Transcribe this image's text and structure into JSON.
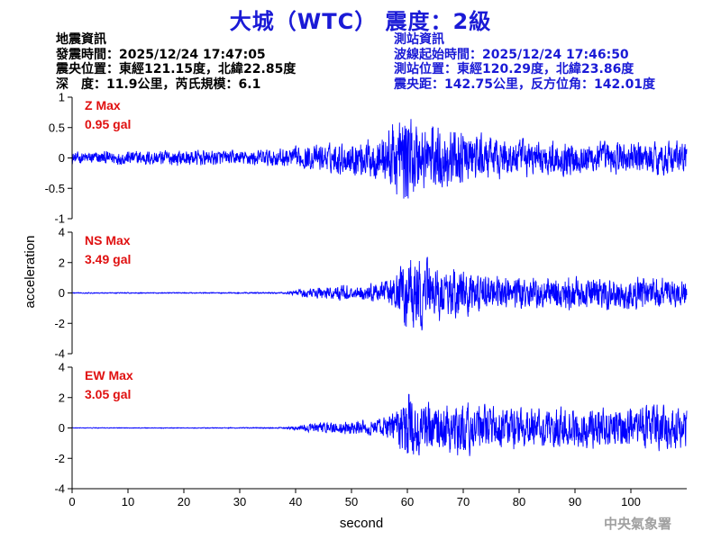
{
  "title": "大城（WTC） 震度：2級",
  "earthquake_info": {
    "heading": "地震資訊",
    "origin_time": "發震時間：2025/12/24 17:47:05",
    "epicenter": "震央位置：東經121.15度，北緯22.85度",
    "depth_magnitude": "深　度：11.9公里，芮氏規模：6.1"
  },
  "station_info": {
    "heading": "測站資訊",
    "wave_start": "波線起始時間：2025/12/24 17:46:50",
    "station_location": "測站位置：東經120.29度，北緯23.86度",
    "distance_azimuth": "震央距：142.75公里，反方位角：142.01度"
  },
  "footer": "中央氣象署",
  "colors": {
    "title": "#1a1ad6",
    "trace": "#0000ff",
    "max_label": "#e01010",
    "axis": "#000000"
  },
  "chart_data": [
    {
      "type": "line",
      "component": "Z",
      "max_label": "Z Max",
      "max_value": "0.95 gal",
      "peak": 0.95,
      "ylim": [
        -1,
        1
      ],
      "yticks": [
        1,
        0.5,
        0,
        -0.5,
        -1
      ],
      "ytick_labels": [
        "1",
        "0.5",
        "0",
        "-0.5",
        "-1"
      ],
      "xlim": [
        0,
        110
      ],
      "envelope": {
        "x": [
          0,
          10,
          20,
          30,
          40,
          45,
          50,
          55,
          58,
          60,
          62,
          65,
          70,
          75,
          80,
          85,
          90,
          95,
          100,
          105,
          110
        ],
        "amp": [
          0.12,
          0.15,
          0.17,
          0.15,
          0.22,
          0.28,
          0.36,
          0.45,
          0.8,
          0.95,
          0.75,
          0.7,
          0.55,
          0.42,
          0.38,
          0.35,
          0.36,
          0.34,
          0.33,
          0.36,
          0.34
        ]
      }
    },
    {
      "type": "line",
      "component": "NS",
      "max_label": "NS Max",
      "max_value": "3.49 gal",
      "peak": 3.49,
      "ylim": [
        -4,
        4
      ],
      "yticks": [
        4,
        2,
        0,
        -2,
        -4
      ],
      "ytick_labels": [
        "4",
        "2",
        "0",
        "-2",
        "-4"
      ],
      "xlim": [
        0,
        110
      ],
      "envelope": {
        "x": [
          0,
          10,
          20,
          30,
          38,
          41,
          45,
          50,
          55,
          58,
          60,
          62,
          65,
          70,
          75,
          80,
          85,
          90,
          95,
          100,
          105,
          110
        ],
        "amp": [
          0.04,
          0.04,
          0.04,
          0.05,
          0.06,
          0.3,
          0.55,
          0.65,
          0.8,
          1.4,
          3.49,
          2.9,
          2.4,
          1.8,
          1.4,
          1.3,
          1.3,
          1.5,
          1.3,
          1.4,
          1.3,
          1.2
        ]
      }
    },
    {
      "type": "line",
      "component": "EW",
      "max_label": "EW Max",
      "max_value": "3.05 gal",
      "peak": 3.05,
      "ylim": [
        -4,
        4
      ],
      "yticks": [
        4,
        2,
        0,
        -2,
        -4
      ],
      "ytick_labels": [
        "4",
        "2",
        "0",
        "-2",
        "-4"
      ],
      "xlim": [
        0,
        110
      ],
      "envelope": {
        "x": [
          0,
          10,
          20,
          30,
          38,
          41,
          45,
          50,
          55,
          58,
          60,
          62,
          65,
          70,
          75,
          80,
          85,
          90,
          95,
          100,
          105,
          110
        ],
        "amp": [
          0.03,
          0.03,
          0.03,
          0.04,
          0.05,
          0.25,
          0.45,
          0.55,
          0.7,
          1.4,
          3.05,
          2.5,
          2.0,
          2.2,
          1.9,
          1.7,
          1.6,
          1.7,
          1.6,
          1.7,
          1.8,
          1.7
        ]
      }
    }
  ],
  "x_axis": {
    "label": "second",
    "ticks": [
      0,
      10,
      20,
      30,
      40,
      50,
      60,
      70,
      80,
      90,
      100
    ],
    "tick_labels": [
      "0",
      "10",
      "20",
      "30",
      "40",
      "50",
      "60",
      "70",
      "80",
      "90",
      "100"
    ]
  },
  "y_axis": {
    "label": "acceleration"
  }
}
